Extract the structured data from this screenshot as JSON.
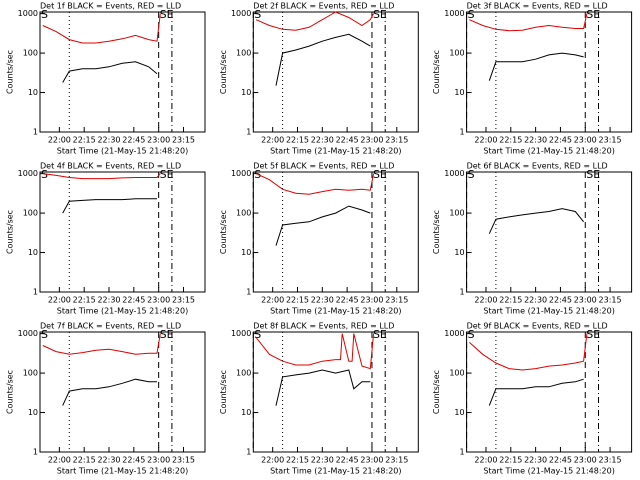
{
  "chart_data": [
    {
      "type": "line",
      "title": "Det 1f BLACK = Events, RED = LLD",
      "xlabel": "Start Time (21-May-15 21:48:20)",
      "ylabel": "Counts/sec",
      "log": true,
      "xlim": [
        1308.3,
        1408
      ],
      "ylim": [
        1,
        1100
      ],
      "yticks": [
        1,
        10,
        100,
        1000
      ],
      "xticks": [
        {
          "value": 1320,
          "label": "22:00"
        },
        {
          "value": 1335,
          "label": "22:15"
        },
        {
          "value": 1350,
          "label": "22:30"
        },
        {
          "value": 1365,
          "label": "22:45"
        },
        {
          "value": 1380,
          "label": "23:00"
        },
        {
          "value": 1395,
          "label": "23:15"
        }
      ],
      "vlines": [
        {
          "x": 1308.3,
          "style": "dashed",
          "label": "S"
        },
        {
          "x": 1326,
          "style": "dotted"
        },
        {
          "x": 1380,
          "style": "dashed",
          "label": "SE"
        },
        {
          "x": 1388,
          "style": "dashdot"
        }
      ],
      "series": [
        {
          "color": "#e00000",
          "x": [
            1310,
            1318,
            1326,
            1334,
            1342,
            1350,
            1358,
            1366,
            1374,
            1379,
            1381
          ],
          "values": [
            500,
            350,
            220,
            180,
            180,
            200,
            230,
            280,
            220,
            200,
            1000
          ]
        },
        {
          "color": "#000000",
          "x": [
            1322,
            1326,
            1334,
            1342,
            1350,
            1358,
            1366,
            1374,
            1379
          ],
          "values": [
            18,
            35,
            40,
            40,
            45,
            55,
            60,
            45,
            30
          ]
        }
      ]
    },
    {
      "type": "line",
      "title": "Det 2f BLACK = Events, RED = LLD",
      "xlabel": "Start Time (21-May-15 21:48:20)",
      "ylabel": "Counts/sec",
      "log": true,
      "xlim": [
        1308.3,
        1408
      ],
      "ylim": [
        1,
        1100
      ],
      "yticks": [
        1,
        10,
        100,
        1000
      ],
      "xticks": [
        {
          "value": 1320,
          "label": "22:00"
        },
        {
          "value": 1335,
          "label": "22:15"
        },
        {
          "value": 1350,
          "label": "22:30"
        },
        {
          "value": 1365,
          "label": "22:45"
        },
        {
          "value": 1380,
          "label": "23:00"
        },
        {
          "value": 1395,
          "label": "23:15"
        }
      ],
      "vlines": [
        {
          "x": 1308.3,
          "style": "dashed",
          "label": "S"
        },
        {
          "x": 1326,
          "style": "dotted"
        },
        {
          "x": 1380,
          "style": "dashed",
          "label": "SE"
        },
        {
          "x": 1388,
          "style": "dashdot"
        }
      ],
      "series": [
        {
          "color": "#e00000",
          "x": [
            1310,
            1318,
            1326,
            1334,
            1342,
            1350,
            1358,
            1366,
            1374,
            1379,
            1381
          ],
          "values": [
            700,
            500,
            400,
            380,
            450,
            700,
            1100,
            800,
            500,
            700,
            1000
          ]
        },
        {
          "color": "#000000",
          "x": [
            1322,
            1326,
            1334,
            1342,
            1350,
            1358,
            1366,
            1374,
            1379
          ],
          "values": [
            15,
            100,
            120,
            150,
            200,
            250,
            300,
            200,
            150
          ]
        }
      ]
    },
    {
      "type": "line",
      "title": "Det 3f BLACK = Events, RED = LLD",
      "xlabel": "Start Time (21-May-15 21:48:20)",
      "ylabel": "Counts/sec",
      "log": true,
      "xlim": [
        1308.3,
        1408
      ],
      "ylim": [
        1,
        1100
      ],
      "yticks": [
        1,
        10,
        100,
        1000
      ],
      "xticks": [
        {
          "value": 1320,
          "label": "22:00"
        },
        {
          "value": 1335,
          "label": "22:15"
        },
        {
          "value": 1350,
          "label": "22:30"
        },
        {
          "value": 1365,
          "label": "22:45"
        },
        {
          "value": 1380,
          "label": "23:00"
        },
        {
          "value": 1395,
          "label": "23:15"
        }
      ],
      "vlines": [
        {
          "x": 1308.3,
          "style": "dashed",
          "label": "S"
        },
        {
          "x": 1326,
          "style": "dotted"
        },
        {
          "x": 1380,
          "style": "dashed",
          "label": "SE"
        },
        {
          "x": 1388,
          "style": "dashdot"
        }
      ],
      "series": [
        {
          "color": "#e00000",
          "x": [
            1310,
            1318,
            1326,
            1334,
            1342,
            1350,
            1358,
            1366,
            1374,
            1379,
            1381
          ],
          "values": [
            700,
            500,
            400,
            370,
            380,
            450,
            500,
            450,
            420,
            420,
            1000
          ]
        },
        {
          "color": "#000000",
          "x": [
            1322,
            1326,
            1334,
            1342,
            1350,
            1358,
            1366,
            1374,
            1379
          ],
          "values": [
            20,
            60,
            60,
            60,
            70,
            90,
            100,
            90,
            80
          ]
        }
      ]
    },
    {
      "type": "line",
      "title": "Det 4f BLACK = Events, RED = LLD",
      "xlabel": "Start Time (21-May-15 21:48:20)",
      "ylabel": "Counts/sec",
      "log": true,
      "xlim": [
        1308.3,
        1408
      ],
      "ylim": [
        1,
        1100
      ],
      "yticks": [
        1,
        10,
        100,
        1000
      ],
      "xticks": [
        {
          "value": 1320,
          "label": "22:00"
        },
        {
          "value": 1335,
          "label": "22:15"
        },
        {
          "value": 1350,
          "label": "22:30"
        },
        {
          "value": 1365,
          "label": "22:45"
        },
        {
          "value": 1380,
          "label": "23:00"
        },
        {
          "value": 1395,
          "label": "23:15"
        }
      ],
      "vlines": [
        {
          "x": 1308.3,
          "style": "dashed",
          "label": "S"
        },
        {
          "x": 1326,
          "style": "dotted"
        },
        {
          "x": 1380,
          "style": "dashed",
          "label": "SE"
        },
        {
          "x": 1388,
          "style": "dashdot"
        }
      ],
      "series": [
        {
          "color": "#e00000",
          "x": [
            1310,
            1318,
            1326,
            1334,
            1342,
            1350,
            1358,
            1366,
            1374,
            1379,
            1381
          ],
          "values": [
            1000,
            900,
            800,
            750,
            750,
            750,
            780,
            800,
            800,
            800,
            1000
          ]
        },
        {
          "color": "#000000",
          "x": [
            1322,
            1326,
            1334,
            1342,
            1350,
            1358,
            1366,
            1374,
            1379
          ],
          "values": [
            100,
            200,
            210,
            220,
            220,
            220,
            230,
            230,
            230
          ]
        }
      ]
    },
    {
      "type": "line",
      "title": "Det 5f BLACK = Events, RED = LLD",
      "xlabel": "Start Time (21-May-15 21:48:20)",
      "ylabel": "Counts/sec",
      "log": true,
      "xlim": [
        1308.3,
        1408
      ],
      "ylim": [
        1,
        1100
      ],
      "yticks": [
        1,
        10,
        100,
        1000
      ],
      "xticks": [
        {
          "value": 1320,
          "label": "22:00"
        },
        {
          "value": 1335,
          "label": "22:15"
        },
        {
          "value": 1350,
          "label": "22:30"
        },
        {
          "value": 1365,
          "label": "22:45"
        },
        {
          "value": 1380,
          "label": "23:00"
        },
        {
          "value": 1395,
          "label": "23:15"
        }
      ],
      "vlines": [
        {
          "x": 1308.3,
          "style": "dashed",
          "label": "S"
        },
        {
          "x": 1326,
          "style": "dotted"
        },
        {
          "x": 1380,
          "style": "dashed",
          "label": "SE"
        },
        {
          "x": 1388,
          "style": "dashdot"
        }
      ],
      "series": [
        {
          "color": "#e00000",
          "x": [
            1310,
            1318,
            1326,
            1334,
            1342,
            1350,
            1358,
            1366,
            1374,
            1379,
            1381
          ],
          "values": [
            1000,
            700,
            400,
            320,
            300,
            350,
            400,
            380,
            400,
            380,
            1000
          ]
        },
        {
          "color": "#000000",
          "x": [
            1322,
            1326,
            1334,
            1342,
            1350,
            1358,
            1366,
            1374,
            1379
          ],
          "values": [
            15,
            50,
            55,
            60,
            80,
            100,
            150,
            120,
            100
          ]
        }
      ]
    },
    {
      "type": "line",
      "title": "Det 6f BLACK = Events, RED = LLD",
      "xlabel": "Start Time (21-May-15 21:48:20)",
      "ylabel": "Counts/sec",
      "log": true,
      "xlim": [
        1308.3,
        1408
      ],
      "ylim": [
        1,
        1100
      ],
      "yticks": [
        1,
        10,
        100,
        1000
      ],
      "xticks": [
        {
          "value": 1320,
          "label": "22:00"
        },
        {
          "value": 1335,
          "label": "22:15"
        },
        {
          "value": 1350,
          "label": "22:30"
        },
        {
          "value": 1365,
          "label": "22:45"
        },
        {
          "value": 1380,
          "label": "23:00"
        },
        {
          "value": 1395,
          "label": "23:15"
        }
      ],
      "vlines": [
        {
          "x": 1308.3,
          "style": "dashed",
          "label": "S"
        },
        {
          "x": 1326,
          "style": "dotted"
        },
        {
          "x": 1380,
          "style": "dashed",
          "label": "SE"
        },
        {
          "x": 1388,
          "style": "dashdot"
        }
      ],
      "series": [
        {
          "color": "#000000",
          "x": [
            1322,
            1326,
            1334,
            1342,
            1350,
            1358,
            1366,
            1374,
            1379
          ],
          "values": [
            30,
            70,
            80,
            90,
            100,
            110,
            130,
            110,
            60
          ]
        }
      ]
    },
    {
      "type": "line",
      "title": "Det 7f BLACK = Events, RED = LLD",
      "xlabel": "Start Time (21-May-15 21:48:20)",
      "ylabel": "Counts/sec",
      "log": true,
      "xlim": [
        1308.3,
        1408
      ],
      "ylim": [
        1,
        1100
      ],
      "yticks": [
        1,
        10,
        100,
        1000
      ],
      "xticks": [
        {
          "value": 1320,
          "label": "22:00"
        },
        {
          "value": 1335,
          "label": "22:15"
        },
        {
          "value": 1350,
          "label": "22:30"
        },
        {
          "value": 1365,
          "label": "22:45"
        },
        {
          "value": 1380,
          "label": "23:00"
        },
        {
          "value": 1395,
          "label": "23:15"
        }
      ],
      "vlines": [
        {
          "x": 1308.3,
          "style": "dashed",
          "label": "S"
        },
        {
          "x": 1326,
          "style": "dotted"
        },
        {
          "x": 1380,
          "style": "dashed",
          "label": "SE"
        },
        {
          "x": 1388,
          "style": "dashdot"
        }
      ],
      "series": [
        {
          "color": "#e00000",
          "x": [
            1310,
            1318,
            1326,
            1334,
            1342,
            1350,
            1358,
            1366,
            1374,
            1379,
            1381
          ],
          "values": [
            500,
            350,
            300,
            330,
            380,
            400,
            350,
            300,
            320,
            320,
            1000
          ]
        },
        {
          "color": "#000000",
          "x": [
            1322,
            1326,
            1334,
            1342,
            1350,
            1358,
            1366,
            1374,
            1379
          ],
          "values": [
            15,
            35,
            40,
            40,
            45,
            55,
            70,
            60,
            60
          ]
        }
      ]
    },
    {
      "type": "line",
      "title": "Det 8f BLACK = Events, RED = LLD",
      "xlabel": "Start Time (21-May-15 21:48:20)",
      "ylabel": "Counts/sec",
      "log": true,
      "xlim": [
        1308.3,
        1408
      ],
      "ylim": [
        1,
        1100
      ],
      "yticks": [
        1,
        10,
        100,
        1000
      ],
      "xticks": [
        {
          "value": 1320,
          "label": "22:00"
        },
        {
          "value": 1335,
          "label": "22:15"
        },
        {
          "value": 1350,
          "label": "22:30"
        },
        {
          "value": 1365,
          "label": "22:45"
        },
        {
          "value": 1380,
          "label": "23:00"
        },
        {
          "value": 1395,
          "label": "23:15"
        }
      ],
      "vlines": [
        {
          "x": 1308.3,
          "style": "dashed",
          "label": "S"
        },
        {
          "x": 1326,
          "style": "dotted"
        },
        {
          "x": 1380,
          "style": "dashed",
          "label": "SE"
        },
        {
          "x": 1388,
          "style": "dashdot"
        }
      ],
      "series": [
        {
          "color": "#e00000",
          "x": [
            1310,
            1318,
            1326,
            1334,
            1342,
            1350,
            1358,
            1361,
            1362,
            1366,
            1368,
            1369,
            1374,
            1379,
            1381
          ],
          "values": [
            800,
            300,
            200,
            160,
            160,
            200,
            220,
            220,
            1000,
            200,
            200,
            1000,
            150,
            130,
            1000
          ]
        },
        {
          "color": "#000000",
          "x": [
            1322,
            1326,
            1334,
            1342,
            1350,
            1358,
            1366,
            1369,
            1374,
            1379
          ],
          "values": [
            15,
            80,
            90,
            100,
            120,
            100,
            120,
            40,
            60,
            60
          ]
        }
      ]
    },
    {
      "type": "line",
      "title": "Det 9f BLACK = Events, RED = LLD",
      "xlabel": "Start Time (21-May-15 21:48:20)",
      "ylabel": "Counts/sec",
      "log": true,
      "xlim": [
        1308.3,
        1408
      ],
      "ylim": [
        1,
        1100
      ],
      "yticks": [
        1,
        10,
        100,
        1000
      ],
      "xticks": [
        {
          "value": 1320,
          "label": "22:00"
        },
        {
          "value": 1335,
          "label": "22:15"
        },
        {
          "value": 1350,
          "label": "22:30"
        },
        {
          "value": 1365,
          "label": "22:45"
        },
        {
          "value": 1380,
          "label": "23:00"
        },
        {
          "value": 1395,
          "label": "23:15"
        }
      ],
      "vlines": [
        {
          "x": 1308.3,
          "style": "dashed",
          "label": "S"
        },
        {
          "x": 1326,
          "style": "dotted"
        },
        {
          "x": 1380,
          "style": "dashed",
          "label": "SE"
        },
        {
          "x": 1388,
          "style": "dashdot"
        }
      ],
      "series": [
        {
          "color": "#e00000",
          "x": [
            1310,
            1318,
            1326,
            1334,
            1342,
            1350,
            1358,
            1366,
            1374,
            1379,
            1381
          ],
          "values": [
            600,
            300,
            180,
            130,
            120,
            130,
            150,
            160,
            180,
            200,
            1000
          ]
        },
        {
          "color": "#000000",
          "x": [
            1322,
            1326,
            1334,
            1342,
            1350,
            1358,
            1366,
            1374,
            1379
          ],
          "values": [
            15,
            40,
            40,
            40,
            45,
            45,
            55,
            60,
            70
          ]
        }
      ]
    }
  ]
}
